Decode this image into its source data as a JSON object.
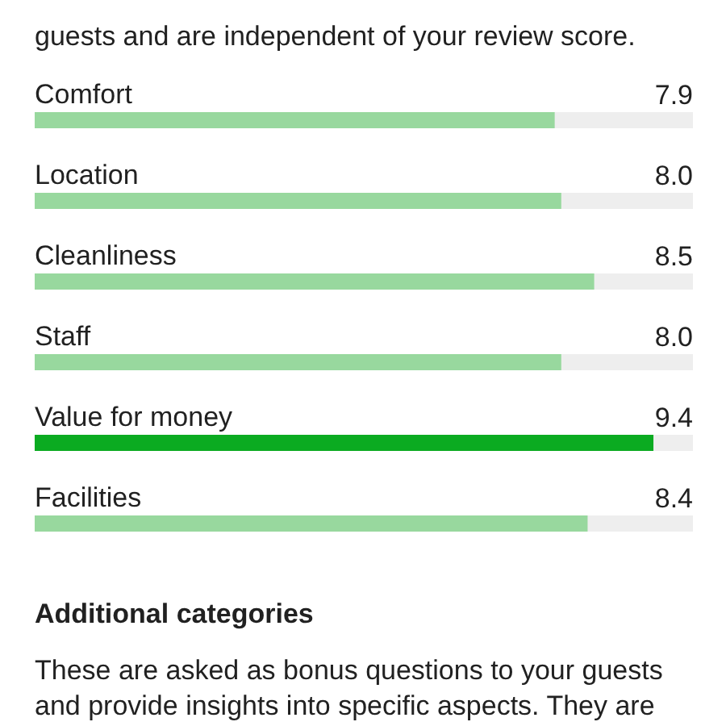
{
  "chart_data": {
    "type": "bar",
    "orientation": "horizontal",
    "categories": [
      "Comfort",
      "Location",
      "Cleanliness",
      "Staff",
      "Value for money",
      "Facilities"
    ],
    "values": [
      7.9,
      8.0,
      8.5,
      8.0,
      9.4,
      8.4
    ],
    "value_labels": [
      "7.9",
      "8.0",
      "8.5",
      "8.0",
      "9.4",
      "8.4"
    ],
    "colors": [
      "#98d89e",
      "#98d89e",
      "#98d89e",
      "#98d89e",
      "#0bab21",
      "#98d89e"
    ],
    "xlim": [
      0,
      10
    ],
    "annotations": [
      "guests and are independent of your review score.",
      "Additional categories",
      "These are asked as bonus questions to your guests",
      "and provide insights into specific aspects. They are"
    ]
  }
}
